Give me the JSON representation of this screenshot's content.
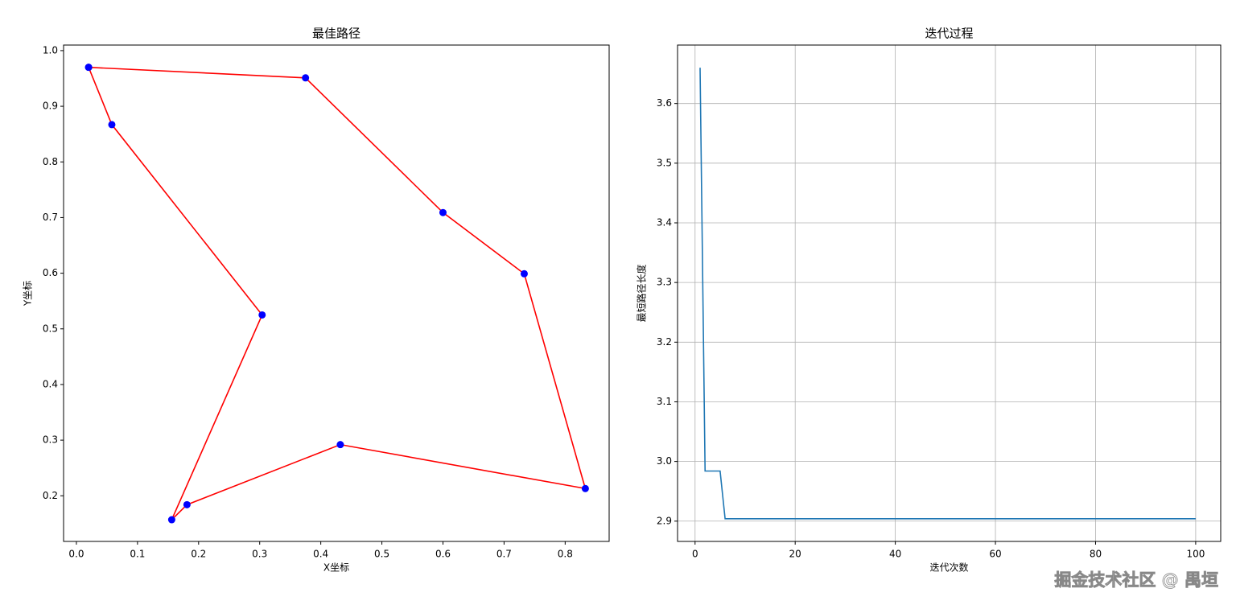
{
  "chart_data": [
    {
      "type": "line",
      "title": "最佳路径",
      "xlabel": "X坐标",
      "ylabel": "Y坐标",
      "x": [
        0.02,
        0.375,
        0.6,
        0.733,
        0.833,
        0.432,
        0.181,
        0.156,
        0.304,
        0.058,
        0.02
      ],
      "series": [
        {
          "color": "#ff0000",
          "marker_color": "#0000ff",
          "values": [
            0.97,
            0.951,
            0.709,
            0.599,
            0.213,
            0.292,
            0.184,
            0.157,
            0.525,
            0.867,
            0.97
          ]
        }
      ],
      "xlim": [
        -0.021,
        0.872
      ],
      "ylim": [
        0.118,
        1.01
      ],
      "xticks": [
        {
          "value": 0,
          "label": "0.0"
        },
        0.1,
        0.2,
        0.3,
        0.4,
        0.5,
        0.6,
        0.7,
        0.8
      ],
      "yticks": [
        0.2,
        0.3,
        0.4,
        0.5,
        0.6,
        0.7,
        0.8,
        0.9,
        {
          "value": 1,
          "label": "1.0"
        }
      ],
      "grid": false
    },
    {
      "type": "line",
      "title": "迭代过程",
      "xlabel": "迭代次数",
      "ylabel": "最短路径长度",
      "x": [
        1,
        2,
        3,
        4,
        5,
        6,
        7,
        8,
        9,
        10,
        11,
        12,
        13,
        14,
        15,
        16,
        17,
        18,
        19,
        20,
        21,
        22,
        23,
        24,
        25,
        26,
        27,
        28,
        29,
        30,
        31,
        32,
        33,
        34,
        35,
        36,
        37,
        38,
        39,
        40,
        41,
        42,
        43,
        44,
        45,
        46,
        47,
        48,
        49,
        50,
        51,
        52,
        53,
        54,
        55,
        56,
        57,
        58,
        59,
        60,
        61,
        62,
        63,
        64,
        65,
        66,
        67,
        68,
        69,
        70,
        71,
        72,
        73,
        74,
        75,
        76,
        77,
        78,
        79,
        80,
        81,
        82,
        83,
        84,
        85,
        86,
        87,
        88,
        89,
        90,
        91,
        92,
        93,
        94,
        95,
        96,
        97,
        98,
        99,
        100
      ],
      "series": [
        {
          "color": "#1f77b4",
          "values": [
            3.66,
            2.984,
            2.984,
            2.984,
            2.984,
            2.904,
            2.904,
            2.904,
            2.904,
            2.904,
            2.904,
            2.904,
            2.904,
            2.904,
            2.904,
            2.904,
            2.904,
            2.904,
            2.904,
            2.904,
            2.904,
            2.904,
            2.904,
            2.904,
            2.904,
            2.904,
            2.904,
            2.904,
            2.904,
            2.904,
            2.904,
            2.904,
            2.904,
            2.904,
            2.904,
            2.904,
            2.904,
            2.904,
            2.904,
            2.904,
            2.904,
            2.904,
            2.904,
            2.904,
            2.904,
            2.904,
            2.904,
            2.904,
            2.904,
            2.904,
            2.904,
            2.904,
            2.904,
            2.904,
            2.904,
            2.904,
            2.904,
            2.904,
            2.904,
            2.904,
            2.904,
            2.904,
            2.904,
            2.904,
            2.904,
            2.904,
            2.904,
            2.904,
            2.904,
            2.904,
            2.904,
            2.904,
            2.904,
            2.904,
            2.904,
            2.904,
            2.904,
            2.904,
            2.904,
            2.904,
            2.904,
            2.904,
            2.904,
            2.904,
            2.904,
            2.904,
            2.904,
            2.904,
            2.904,
            2.904,
            2.904,
            2.904,
            2.904,
            2.904,
            2.904,
            2.904,
            2.904,
            2.904,
            2.904,
            2.904
          ]
        }
      ],
      "xlim": [
        -3.5,
        105
      ],
      "ylim": [
        2.866,
        3.698
      ],
      "xticks": [
        0,
        20,
        40,
        60,
        80,
        100
      ],
      "yticks": [
        2.9,
        {
          "value": 3,
          "label": "3.0"
        },
        3.1,
        3.2,
        3.3,
        3.4,
        3.5,
        3.6
      ],
      "grid": true
    }
  ],
  "watermark": "掘金技术社区 @ 禺垣"
}
